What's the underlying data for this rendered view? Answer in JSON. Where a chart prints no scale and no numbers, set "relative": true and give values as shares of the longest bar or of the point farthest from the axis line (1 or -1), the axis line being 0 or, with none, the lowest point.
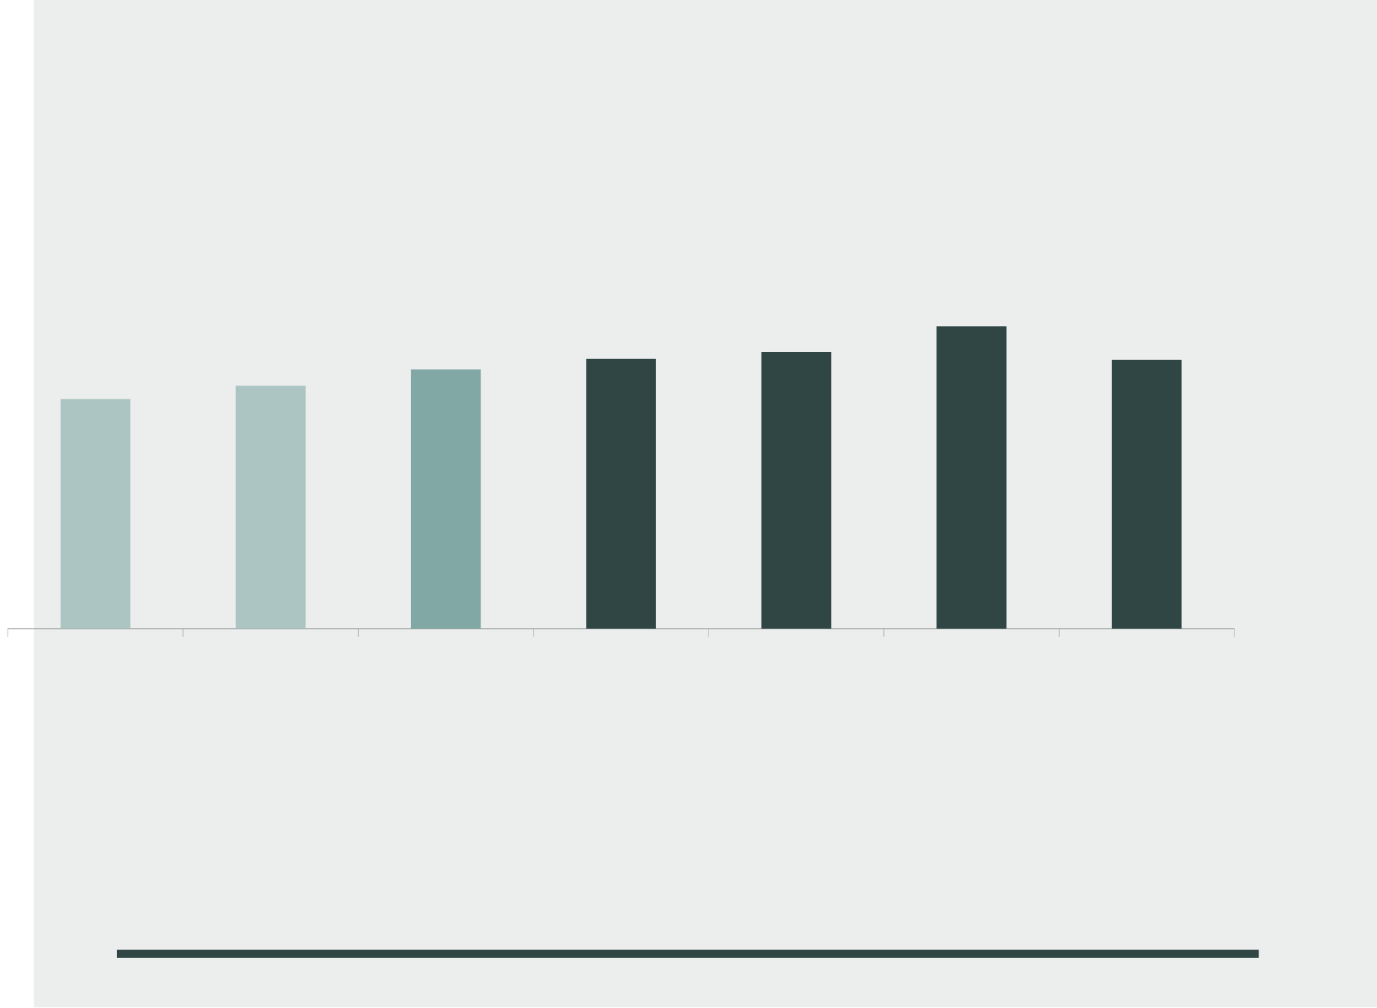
{
  "chart_data": {
    "type": "bar",
    "relative": true,
    "categories": [
      null,
      null,
      null,
      null,
      null,
      null,
      null
    ],
    "values": [
      0.76,
      0.804,
      0.858,
      0.893,
      0.916,
      1,
      0.889
    ],
    "colors": [
      "#adc5c2",
      "#adc5c2",
      "#81a8a5",
      "#2f4644",
      "#2f4644",
      "#2f4644",
      "#2f4644"
    ]
  }
}
